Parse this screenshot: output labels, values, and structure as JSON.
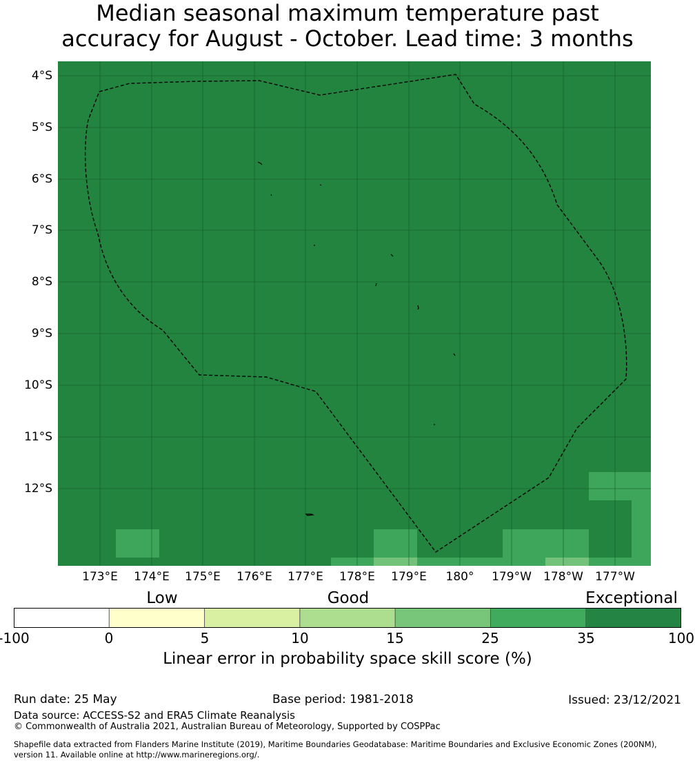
{
  "title": {
    "line1": "Median seasonal maximum temperature past",
    "line2": "accuracy for August - October. Lead time: 3 months"
  },
  "map": {
    "lat_labels": [
      "4°S",
      "5°S",
      "6°S",
      "7°S",
      "8°S",
      "9°S",
      "10°S",
      "11°S",
      "12°S"
    ],
    "lon_labels": [
      "173°E",
      "174°E",
      "175°E",
      "176°E",
      "177°E",
      "178°E",
      "179°E",
      "180°",
      "179°W",
      "178°W",
      "177°W"
    ],
    "colors": {
      "exceptional": "#23843F",
      "good_25_35": "#3DA65A",
      "good_15_25": "#74C27A",
      "boundary": "#000000"
    }
  },
  "colorbar": {
    "categories": [
      "Low",
      "Good",
      "Exceptional"
    ],
    "ticks": [
      "-100",
      "0",
      "5",
      "10",
      "15",
      "25",
      "35",
      "100"
    ],
    "colors": [
      "#FFFFFF",
      "#FFFFCC",
      "#D9F0A3",
      "#ADDD8E",
      "#78C679",
      "#41AB5D",
      "#238443"
    ],
    "label": "Linear error in probability space skill score (%)"
  },
  "footer": {
    "run_date": "Run date: 25 May",
    "base_period": "Base period: 1981-2018",
    "issued": "Issued: 23/12/2021",
    "data_source": "Data source: ACCESS-S2 and ERA5 Climate Reanalysis",
    "copyright": "© Commonwealth of Australia 2021, Australian Bureau of Meteorology, Supported by COSPPac",
    "shapefile_line1": "Shapefile data extracted from Flanders Marine Institute (2019), Maritime Boundaries Geodatabase: Maritime Boundaries and Exclusive Economic Zones (200NM),",
    "shapefile_line2": "version 11. Available online at http://www.marineregions.org/."
  }
}
